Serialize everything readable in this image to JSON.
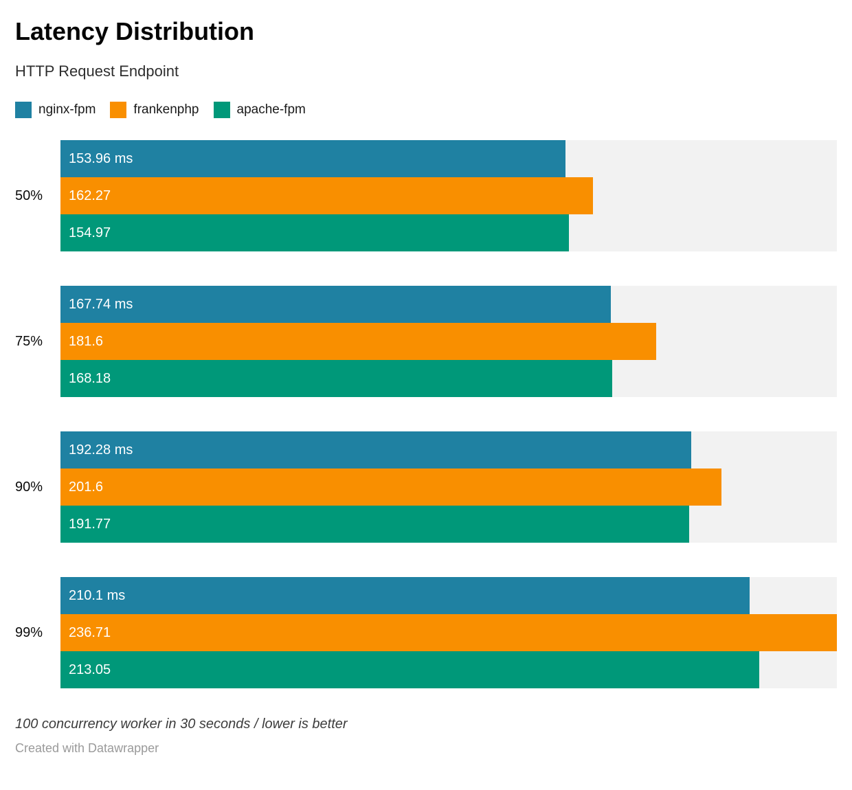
{
  "header": {
    "title": "Latency Distribution",
    "subtitle": "HTTP Request Endpoint"
  },
  "legend": [
    {
      "label": "nginx-fpm",
      "color": "#1f81a2"
    },
    {
      "label": "frankenphp",
      "color": "#f98f00"
    },
    {
      "label": "apache-fpm",
      "color": "#009879"
    }
  ],
  "chart_data": {
    "type": "bar",
    "orientation": "horizontal",
    "unit": "ms",
    "title": "Latency Distribution",
    "subtitle": "HTTP Request Endpoint",
    "categories": [
      "50%",
      "75%",
      "90%",
      "99%"
    ],
    "series": [
      {
        "name": "nginx-fpm",
        "color": "#1f81a2",
        "values": [
          153.96,
          167.74,
          192.28,
          210.1
        ]
      },
      {
        "name": "frankenphp",
        "color": "#f98f00",
        "values": [
          162.27,
          181.6,
          201.6,
          236.71
        ]
      },
      {
        "name": "apache-fpm",
        "color": "#009879",
        "values": [
          154.97,
          168.18,
          191.77,
          213.05
        ]
      }
    ],
    "bar_labels": [
      [
        "153.96 ms",
        "162.27",
        "154.97"
      ],
      [
        "167.74 ms",
        "181.6",
        "168.18"
      ],
      [
        "192.28 ms",
        "201.6",
        "191.77"
      ],
      [
        "210.1 ms",
        "236.71",
        "213.05"
      ]
    ],
    "xmin": 0,
    "xmax": 236.71,
    "grid": false,
    "legend_position": "top",
    "track_color": "#f2f2f2"
  },
  "footer": {
    "note": "100 concurrency worker in 30 seconds / lower is better",
    "attribution": "Created with Datawrapper"
  }
}
